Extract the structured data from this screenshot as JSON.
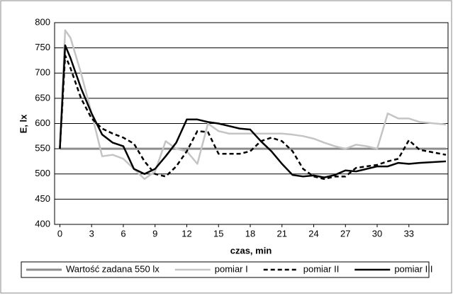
{
  "chart_data": {
    "type": "line",
    "y_label": "E, lx",
    "x_label": "czas, min",
    "x": [
      0,
      0.5,
      1,
      2,
      3,
      4,
      5,
      6,
      7,
      8,
      9,
      10,
      11,
      12,
      13,
      14,
      15,
      16,
      17,
      18,
      19,
      20,
      21,
      22,
      23,
      24,
      25,
      26,
      27,
      28,
      29,
      30,
      31,
      32,
      33,
      34,
      36.5
    ],
    "series": [
      {
        "name": "Wartość zadana 550 lx",
        "color": "#8c8c8c",
        "width": 3,
        "dashed": false,
        "values": [
          550,
          550,
          550,
          550,
          550,
          550,
          550,
          550,
          550,
          550,
          550,
          550,
          550,
          550,
          550,
          550,
          550,
          550,
          550,
          550,
          550,
          550,
          550,
          550,
          550,
          550,
          550,
          550,
          550,
          550,
          550,
          550,
          550,
          550,
          550,
          550,
          550
        ]
      },
      {
        "name": "pomiar I",
        "color": "#c4c4c4",
        "width": 2.5,
        "dashed": false,
        "values": [
          550,
          785,
          770,
          700,
          620,
          535,
          538,
          530,
          510,
          490,
          505,
          565,
          550,
          545,
          520,
          600,
          585,
          580,
          580,
          580,
          580,
          580,
          580,
          578,
          575,
          570,
          562,
          555,
          550,
          558,
          555,
          550,
          620,
          610,
          610,
          603,
          598
        ]
      },
      {
        "name": "pomiar II",
        "color": "#000000",
        "width": 2.5,
        "dashed": true,
        "values": [
          550,
          735,
          710,
          650,
          610,
          590,
          580,
          572,
          560,
          525,
          500,
          495,
          515,
          545,
          585,
          583,
          540,
          540,
          540,
          545,
          565,
          572,
          565,
          545,
          510,
          495,
          490,
          495,
          495,
          512,
          515,
          518,
          525,
          530,
          567,
          548,
          538
        ]
      },
      {
        "name": "pomiar III",
        "color": "#000000",
        "width": 2.5,
        "dashed": false,
        "values": [
          550,
          755,
          730,
          670,
          620,
          578,
          562,
          555,
          510,
          500,
          510,
          535,
          562,
          608,
          608,
          603,
          600,
          595,
          590,
          588,
          565,
          545,
          520,
          498,
          495,
          497,
          493,
          498,
          507,
          505,
          510,
          515,
          515,
          522,
          520,
          522,
          525
        ]
      }
    ],
    "xlim": [
      -0.5,
      36.7
    ],
    "xticks": [
      0,
      3,
      6,
      9,
      12,
      15,
      18,
      21,
      24,
      27,
      30,
      33
    ],
    "ylim": [
      400,
      800
    ],
    "yticks": [
      400,
      450,
      500,
      550,
      600,
      650,
      700,
      750,
      800
    ],
    "grid": true,
    "legend": "bottom"
  }
}
